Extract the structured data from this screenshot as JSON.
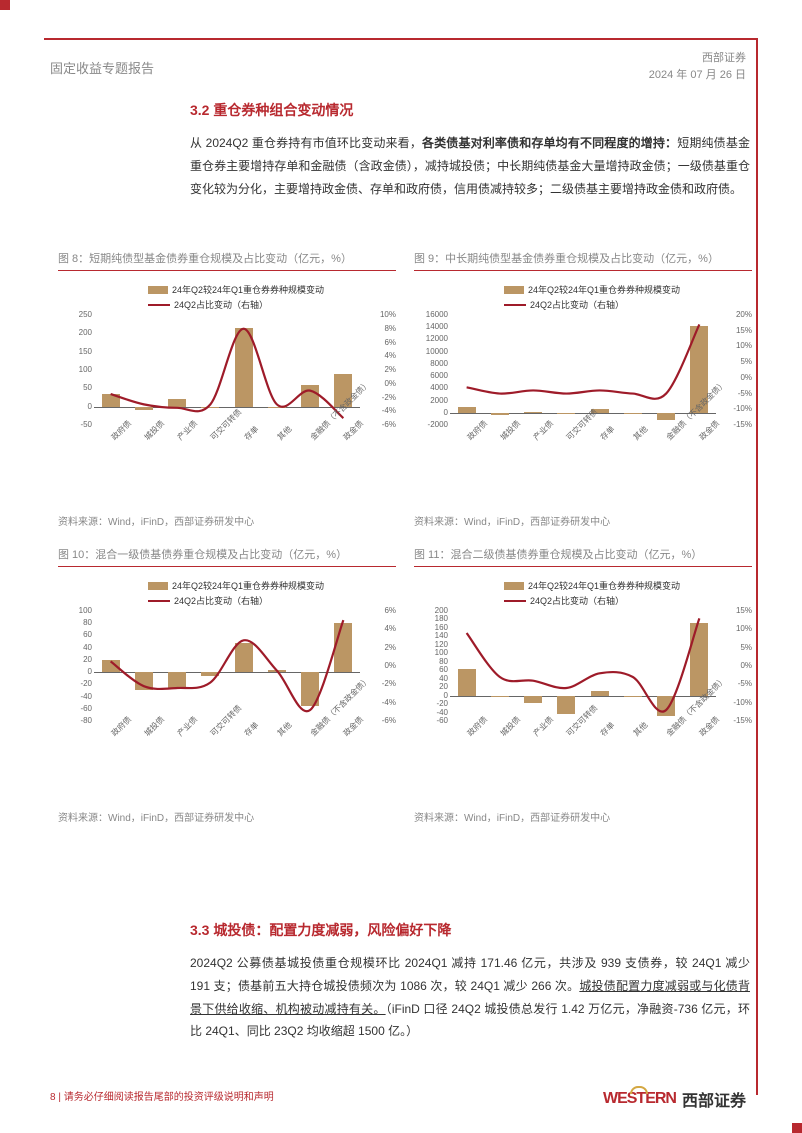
{
  "header": {
    "left": "固定收益专题报告",
    "right_line1": "西部证券",
    "right_line2": "2024 年 07 月 26 日"
  },
  "section32": {
    "title": "3.2 重仓券种组合变动情况",
    "p1_lead": "从 2024Q2 重仓券持有市值环比变动来看，",
    "p1_bold": "各类债基对利率债和存单均有不同程度的增持：",
    "p1_rest": "短期纯债基金重仓券主要增持存单和金融债（含政金债），减持城投债；中长期纯债基金大量增持政金债；一级债基重仓变化较为分化，主要增持政金债、存单和政府债，信用债减持较多；二级债基主要增持政金债和政府债。"
  },
  "section33": {
    "title": "3.3 城投债：配置力度减弱，风险偏好下降",
    "p1_a": "2024Q2 公募债基城投债重仓规模环比 2024Q1 减持 171.46 亿元，共涉及 939 支债券，较 24Q1 减少 191 支；债基前五大持仓城投债频次为 1086 次，较 24Q1 减少 266 次。",
    "p1_ul": "城投债配置力度减弱或与化债背景下供给收缩、机构被动减持有关。",
    "p1_b": "（iFinD 口径 24Q2 城投债总发行 1.42 万亿元，净融资-736 亿元，环比 24Q1、同比 23Q2 均收缩超 1500 亿。）"
  },
  "charts": {
    "legend_bar": "24年Q2较24年Q1重仓券券种规模变动",
    "legend_line": "24Q2占比变动（右轴）",
    "source": "资料来源：Wind，iFinD，西部证券研发中心",
    "bar_color": "#bb9664",
    "line_color": "#9e1b29",
    "categories": [
      "政府债",
      "城投债",
      "产业债",
      "可交可转债",
      "存单",
      "其他",
      "金融债（不含政金债）",
      "政金债"
    ],
    "c8": {
      "title": "图 8：短期纯债型基金债券重仓规模及占比变动（亿元，%）",
      "y_left": {
        "min": -50,
        "max": 250,
        "step": 50
      },
      "y_right": {
        "min": -6,
        "max": 10,
        "step": 2,
        "fmt": "pct"
      },
      "bars": [
        35,
        -8,
        20,
        0,
        215,
        0,
        60,
        90
      ],
      "line": [
        -1.5,
        -3,
        -3.5,
        -3,
        8,
        -3,
        -1,
        -5
      ]
    },
    "c9": {
      "title": "图 9：中长期纯债型基金债券重仓规模及占比变动（亿元，%）",
      "y_left": {
        "min": -2000,
        "max": 16000,
        "step": 2000
      },
      "y_right": {
        "min": -15,
        "max": 20,
        "step": 5,
        "fmt": "pct"
      },
      "bars": [
        900,
        -300,
        100,
        0,
        600,
        -200,
        -1200,
        14200
      ],
      "line": [
        -3,
        -5,
        -4,
        -5,
        -4,
        -5,
        -5,
        17
      ]
    },
    "c10": {
      "title": "图 10：混合一级债基债券重仓规模及占比变动（亿元，%）",
      "y_left": {
        "min": -80,
        "max": 100,
        "step": 20
      },
      "y_right": {
        "min": -6,
        "max": 6,
        "step": 2,
        "fmt": "pct"
      },
      "bars": [
        20,
        -30,
        -28,
        -6,
        48,
        4,
        -56,
        80
      ],
      "line": [
        0.5,
        -2.2,
        -2.4,
        -1.8,
        2.8,
        -0.5,
        -4.8,
        5
      ]
    },
    "c11": {
      "title": "图 11：混合二级债基债券重仓规模及占比变动（亿元，%）",
      "y_left": {
        "min": -60,
        "max": 200,
        "step": 20
      },
      "y_right": {
        "min": -15,
        "max": 15,
        "step": 5,
        "fmt": "pct"
      },
      "bars": [
        62,
        -4,
        -18,
        -44,
        10,
        -2,
        -48,
        172
      ],
      "line": [
        9,
        -3,
        -4,
        -6,
        -2,
        -3,
        -12,
        13
      ]
    }
  },
  "footer": {
    "left": "8 | 请务必仔细阅读报告尾部的投资评级说明和声明",
    "logo_en": "WESTERN",
    "logo_cn": "西部证券"
  }
}
